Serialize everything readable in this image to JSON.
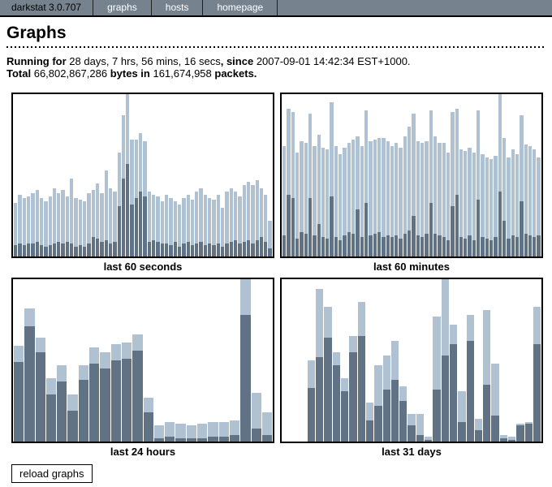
{
  "nav": {
    "brand": "darkstat 3.0.707",
    "items": [
      {
        "label": "graphs"
      },
      {
        "label": "hosts"
      },
      {
        "label": "homepage"
      }
    ]
  },
  "page": {
    "title": "Graphs"
  },
  "stats": {
    "running_label": "Running for",
    "duration": "28 days, 7 hrs, 56 mins, 16 secs",
    "since_label": ", since",
    "since_value": "2007-09-01 14:42:34 EST+1000.",
    "total_label": "Total",
    "bytes_value": "66,802,867,286",
    "bytes_label": "bytes in",
    "packets_value": "161,674,958",
    "packets_label": "packets."
  },
  "colors": {
    "nav_bg": "#76838F",
    "bar_dark": "#607283",
    "bar_light": "#B0C1D1"
  },
  "reload_button_label": "reload graphs",
  "chart_data": [
    {
      "type": "bar",
      "stacked": true,
      "title": "last 60 seconds",
      "x": "seconds ago (60 bars, oldest left)",
      "unit": "percent of graph height",
      "axes_visible": false,
      "legend": "none",
      "series": [
        {
          "name": "lower_dark",
          "color": "#607283",
          "values": [
            7,
            8,
            7,
            8,
            8,
            9,
            7,
            6,
            7,
            8,
            9,
            8,
            9,
            8,
            6,
            7,
            6,
            8,
            12,
            11,
            9,
            10,
            8,
            9,
            31,
            48,
            57,
            32,
            36,
            40,
            37,
            9,
            10,
            9,
            8,
            8,
            7,
            9,
            6,
            8,
            9,
            7,
            8,
            9,
            7,
            8,
            7,
            8,
            6,
            8,
            9,
            10,
            8,
            9,
            10,
            8,
            10,
            12,
            9,
            5
          ]
        },
        {
          "name": "upper_light",
          "color": "#B0C1D1",
          "values": [
            26,
            30,
            29,
            29,
            31,
            32,
            29,
            28,
            30,
            34,
            30,
            33,
            28,
            40,
            30,
            28,
            28,
            31,
            29,
            34,
            30,
            43,
            34,
            31,
            33,
            39,
            43,
            40,
            36,
            36,
            34,
            31,
            28,
            28,
            26,
            30,
            29,
            25,
            26,
            28,
            29,
            28,
            32,
            33,
            31,
            28,
            28,
            30,
            24,
            32,
            33,
            30,
            29,
            35,
            36,
            36,
            37,
            30,
            29,
            17
          ]
        }
      ]
    },
    {
      "type": "bar",
      "stacked": true,
      "title": "last 60 minutes",
      "x": "minutes ago (60 bars, oldest left)",
      "unit": "percent of graph height",
      "axes_visible": false,
      "legend": "none",
      "series": [
        {
          "name": "lower_dark",
          "color": "#607283",
          "values": [
            13,
            38,
            36,
            11,
            15,
            14,
            36,
            13,
            20,
            12,
            11,
            37,
            12,
            10,
            13,
            15,
            14,
            29,
            12,
            33,
            13,
            14,
            15,
            12,
            13,
            12,
            13,
            11,
            14,
            16,
            25,
            13,
            12,
            14,
            33,
            14,
            13,
            12,
            10,
            31,
            38,
            12,
            11,
            13,
            10,
            35,
            12,
            11,
            10,
            12,
            40,
            22,
            11,
            13,
            12,
            34,
            14,
            13,
            12,
            13
          ]
        },
        {
          "name": "upper_light",
          "color": "#B0C1D1",
          "values": [
            55,
            53,
            53,
            53,
            56,
            56,
            52,
            55,
            55,
            55,
            55,
            58,
            56,
            53,
            54,
            55,
            58,
            45,
            56,
            57,
            58,
            58,
            58,
            61,
            58,
            56,
            57,
            56,
            60,
            64,
            63,
            58,
            58,
            57,
            57,
            60,
            57,
            58,
            54,
            58,
            53,
            54,
            54,
            54,
            54,
            55,
            51,
            50,
            50,
            50,
            60,
            51,
            50,
            53,
            51,
            53,
            55,
            55,
            54,
            48
          ]
        }
      ]
    },
    {
      "type": "bar",
      "stacked": true,
      "title": "last 24 hours",
      "x": "hours ago (24 bars, oldest left)",
      "unit": "percent of graph height",
      "axes_visible": false,
      "legend": "none",
      "series": [
        {
          "name": "lower_dark",
          "color": "#607283",
          "values": [
            49,
            71,
            55,
            29,
            37,
            19,
            38,
            48,
            45,
            50,
            51,
            56,
            18,
            2,
            3,
            2,
            2,
            2,
            3,
            3,
            4,
            78,
            8,
            4
          ]
        },
        {
          "name": "upper_light",
          "color": "#B0C1D1",
          "values": [
            10,
            11,
            9,
            10,
            10,
            10,
            9,
            10,
            10,
            10,
            10,
            10,
            9,
            8,
            9,
            9,
            8,
            9,
            9,
            9,
            9,
            22,
            22,
            14
          ]
        }
      ]
    },
    {
      "type": "bar",
      "stacked": true,
      "title": "last 31 days",
      "x": "days ago (31 slots, first 3 empty, oldest left)",
      "unit": "percent of graph height",
      "axes_visible": false,
      "legend": "none",
      "series": [
        {
          "name": "lower_dark",
          "color": "#607283",
          "values": [
            0,
            0,
            0,
            33,
            52,
            64,
            47,
            31,
            55,
            65,
            13,
            22,
            32,
            38,
            25,
            10,
            4,
            1,
            32,
            53,
            60,
            12,
            62,
            7,
            35,
            16,
            2,
            1,
            10,
            11,
            60
          ]
        },
        {
          "name": "upper_light",
          "color": "#B0C1D1",
          "values": [
            0,
            0,
            0,
            17,
            42,
            19,
            8,
            8,
            10,
            21,
            11,
            25,
            21,
            24,
            9,
            7,
            13,
            2,
            45,
            47,
            12,
            19,
            16,
            7,
            46,
            32,
            2,
            2,
            1,
            1,
            23
          ]
        }
      ]
    }
  ]
}
